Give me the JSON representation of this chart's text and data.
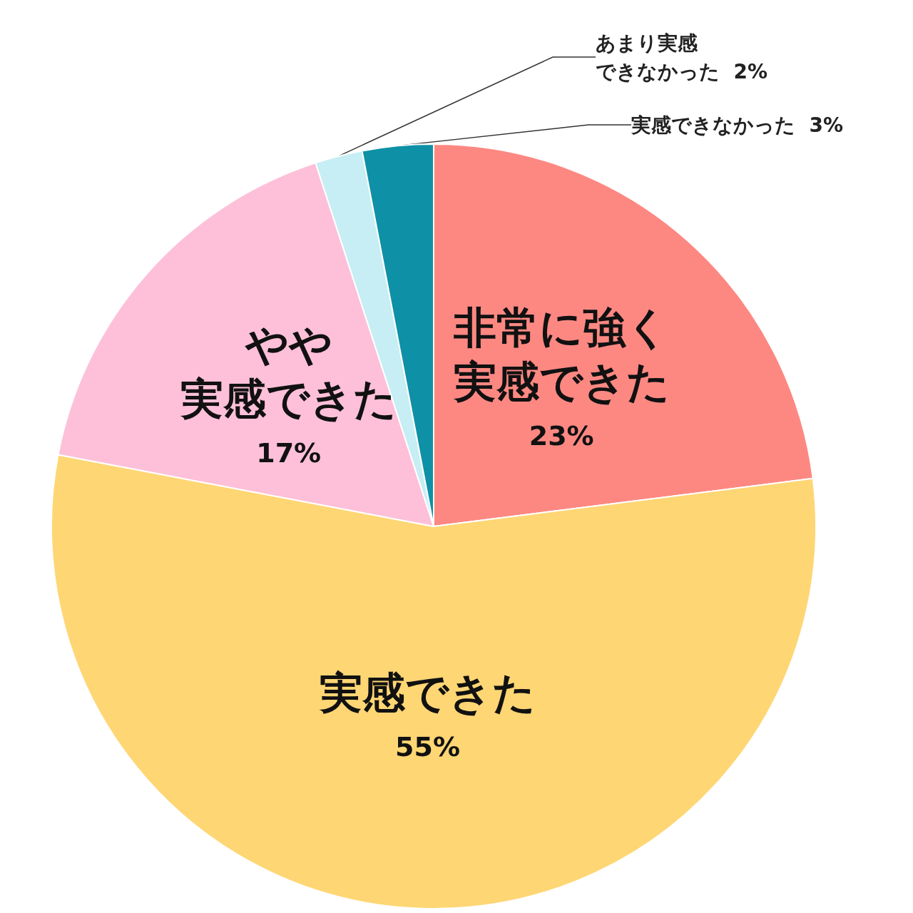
{
  "chart_data": {
    "type": "pie",
    "categories": [
      "非常に強く実感できた",
      "実感できた",
      "やや実感できた",
      "あまり実感できなかった",
      "実感できなかった"
    ],
    "values": [
      23,
      55,
      17,
      2,
      3
    ],
    "value_labels": [
      "23%",
      "55%",
      "17%",
      "2%",
      "3%"
    ],
    "colors": [
      "#fd8882",
      "#fed674",
      "#fdc0d8",
      "#c6eef4",
      "#0e91a6"
    ]
  }
}
